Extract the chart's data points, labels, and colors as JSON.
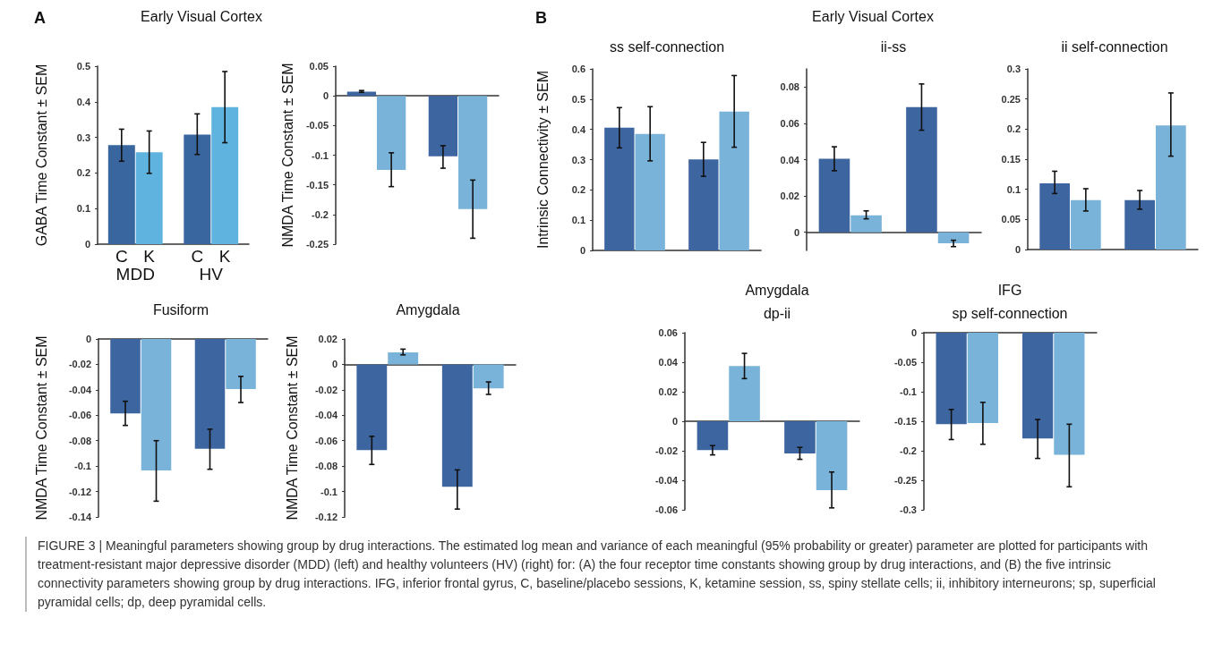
{
  "chart_data": [
    {
      "type": "bar",
      "title": "Early Visual Cortex",
      "ylabel": "GABA Time Constant ± SEM",
      "categories": [
        "MDD",
        "HV"
      ],
      "annotations": [
        "A"
      ],
      "ylim": [
        0,
        0.5
      ],
      "yticks": [
        0,
        0.1,
        0.2,
        0.3,
        0.4,
        0.5
      ],
      "series": [
        {
          "name": "C",
          "color": "#3a66a0",
          "values": [
            0.278,
            0.308
          ],
          "errors": [
            [
              0.233,
              0.323
            ],
            [
              0.252,
              0.366
            ]
          ]
        },
        {
          "name": "K",
          "color": "#5fb3df",
          "values": [
            0.258,
            0.385
          ],
          "errors": [
            [
              0.199,
              0.318
            ],
            [
              0.285,
              0.485
            ]
          ]
        }
      ]
    },
    {
      "type": "bar",
      "ylabel": "NMDA Time Constant ± SEM",
      "categories": [
        null,
        null
      ],
      "ylim": [
        -0.25,
        0.05
      ],
      "yticks": [
        -0.25,
        -0.2,
        -0.15,
        -0.1,
        -0.05,
        0,
        0.05
      ],
      "series": [
        {
          "color": "#3d65a0",
          "values": [
            0.007,
            -0.102
          ],
          "errors": [
            [
              0.006,
              0.009
            ],
            [
              -0.122,
              -0.084
            ]
          ]
        },
        {
          "color": "#7ab3d9",
          "values": [
            -0.125,
            -0.191
          ],
          "errors": [
            [
              -0.153,
              -0.096
            ],
            [
              -0.24,
              -0.142
            ]
          ]
        }
      ]
    },
    {
      "type": "bar",
      "subtitle": "ss self-connection",
      "ylabel": "Intrinsic Connectivity ± SEM",
      "categories": [
        null,
        null
      ],
      "annotations": [
        "B"
      ],
      "ylim": [
        0,
        0.6
      ],
      "yticks": [
        0,
        0.1,
        0.2,
        0.3,
        0.4,
        0.5,
        0.6
      ],
      "series": [
        {
          "color": "#3d65a0",
          "values": [
            0.406,
            0.301
          ],
          "errors": [
            [
              0.339,
              0.472
            ],
            [
              0.245,
              0.357
            ]
          ]
        },
        {
          "color": "#7ab3d9",
          "values": [
            0.385,
            0.459
          ],
          "errors": [
            [
              0.296,
              0.475
            ],
            [
              0.341,
              0.578
            ]
          ]
        }
      ]
    },
    {
      "type": "bar",
      "title": "Early Visual Cortex",
      "subtitle": "ii-ss",
      "categories": [
        null,
        null
      ],
      "ylim": [
        -0.01,
        0.09
      ],
      "yticks": [
        0,
        0.02,
        0.04,
        0.06,
        0.08
      ],
      "series": [
        {
          "color": "#3d65a0",
          "values": [
            0.0405,
            0.069
          ],
          "errors": [
            [
              0.0339,
              0.0471
            ],
            [
              0.0562,
              0.0817
            ]
          ]
        },
        {
          "color": "#7ab3d9",
          "values": [
            0.0093,
            -0.0061
          ],
          "errors": [
            [
              0.0074,
              0.0118
            ],
            [
              -0.0079,
              -0.0044
            ]
          ]
        }
      ]
    },
    {
      "type": "bar",
      "subtitle": "ii self-connection",
      "categories": [
        null,
        null
      ],
      "ylim": [
        0,
        0.3
      ],
      "yticks": [
        0,
        0.05,
        0.1,
        0.15,
        0.2,
        0.25,
        0.3
      ],
      "series": [
        {
          "color": "#3d65a0",
          "values": [
            0.11,
            0.082
          ],
          "errors": [
            [
              0.093,
              0.13
            ],
            [
              0.067,
              0.098
            ]
          ]
        },
        {
          "color": "#7ab3d9",
          "values": [
            0.082,
            0.206
          ],
          "errors": [
            [
              0.064,
              0.101
            ],
            [
              0.155,
              0.26
            ]
          ]
        }
      ]
    },
    {
      "type": "bar",
      "title": "Fusiform",
      "ylabel": "NMDA Time Constant ± SEM",
      "categories": [
        null,
        null
      ],
      "ylim": [
        -0.14,
        0
      ],
      "yticks": [
        -0.14,
        -0.12,
        -0.1,
        -0.08,
        -0.06,
        -0.04,
        -0.02,
        0
      ],
      "series": [
        {
          "color": "#3d65a0",
          "values": [
            -0.0585,
            -0.0864
          ],
          "errors": [
            [
              -0.068,
              -0.049
            ],
            [
              -0.1025,
              -0.071
            ]
          ]
        },
        {
          "color": "#7ab3d9",
          "values": [
            -0.1035,
            -0.0394
          ],
          "errors": [
            [
              -0.1276,
              -0.08
            ],
            [
              -0.05,
              -0.0294
            ]
          ]
        }
      ]
    },
    {
      "type": "bar",
      "title": "Amygdala",
      "ylabel": "NMDA Time Constant ± SEM",
      "categories": [
        null,
        null
      ],
      "ylim": [
        -0.12,
        0.02
      ],
      "yticks": [
        -0.12,
        -0.1,
        -0.08,
        -0.06,
        -0.04,
        -0.02,
        0,
        0.02
      ],
      "series": [
        {
          "color": "#3d65a0",
          "values": [
            -0.0674,
            -0.0962
          ],
          "errors": [
            [
              -0.0787,
              -0.0566
            ],
            [
              -0.1138,
              -0.083
            ]
          ]
        },
        {
          "color": "#7ab3d9",
          "values": [
            0.0095,
            -0.0188
          ],
          "errors": [
            [
              0.0075,
              0.012
            ],
            [
              -0.0236,
              -0.0138
            ]
          ]
        }
      ]
    },
    {
      "type": "bar",
      "title": "Amygdala",
      "subtitle": "dp-ii",
      "categories": [
        null,
        null
      ],
      "ylim": [
        -0.06,
        0.06
      ],
      "yticks": [
        -0.06,
        -0.04,
        -0.02,
        0,
        0.02,
        0.04,
        0.06
      ],
      "series": [
        {
          "color": "#3d65a0",
          "values": [
            -0.0195,
            -0.0218
          ],
          "errors": [
            [
              -0.0228,
              -0.0165
            ],
            [
              -0.0258,
              -0.0177
            ]
          ]
        },
        {
          "color": "#7ab3d9",
          "values": [
            0.0375,
            -0.0466
          ],
          "errors": [
            [
              0.0289,
              0.046
            ],
            [
              -0.0587,
              -0.0344
            ]
          ]
        }
      ]
    },
    {
      "type": "bar",
      "title": "IFG",
      "subtitle": "sp self-connection",
      "categories": [
        null,
        null
      ],
      "ylim": [
        -0.3,
        0
      ],
      "yticks": [
        -0.3,
        -0.25,
        -0.2,
        -0.15,
        -0.1,
        -0.05,
        0
      ],
      "annotations": [
        "FIGURE 3 | Meaningful parameters showing group by drug interactions. The estimated log mean and variance of each meaningful (95% probability or greater) parameter are plotted for participants with treatment-resistant major depressive disorder (MDD) (left) and healthy volunteers (HV) (right) for: (A) the four receptor time constants showing group by drug interactions, and (B) the five intrinsic connectivity parameters showing group by drug interactions. IFG, inferior frontal gyrus, C, baseline/placebo sessions, K, ketamine session, ss, spiny stellate cells; ii, inhibitory interneurons; sp, superficial pyramidal cells; dp, deep pyramidal cells."
      ],
      "series": [
        {
          "color": "#3d65a0",
          "values": [
            -0.155,
            -0.179
          ],
          "errors": [
            [
              -0.181,
              -0.13
            ],
            [
              -0.213,
              -0.147
            ]
          ]
        },
        {
          "color": "#7ab3d9",
          "values": [
            -0.153,
            -0.207
          ],
          "errors": [
            [
              -0.189,
              -0.118
            ],
            [
              -0.261,
              -0.155
            ]
          ]
        }
      ]
    }
  ]
}
